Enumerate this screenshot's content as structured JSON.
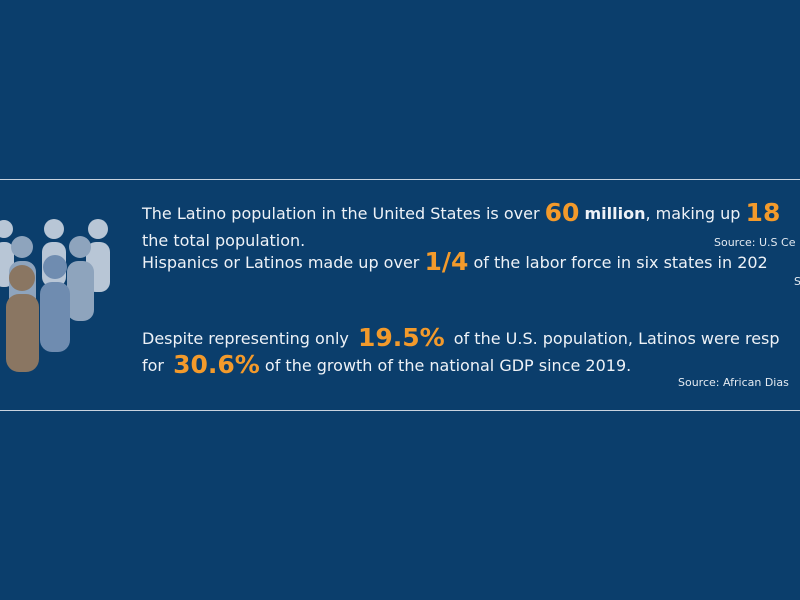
{
  "statements": [
    {
      "text_before": "The Latino population in the United States is over",
      "figure": "60",
      "unit": "million",
      "text_after": ", making up",
      "figure2": "18",
      "line2": "the total population.",
      "source": "Source:  U.S Ce"
    },
    {
      "text_before": "Hispanics or Latinos made up over",
      "figure": "1/4",
      "text_after": "of the labor force in six states in 202",
      "source": "S"
    },
    {
      "text_before": "Despite representing only",
      "figure": "19.5%",
      "text_after": "of the U.S. population, Latinos were resp",
      "line2_before": "for",
      "figure2": "30.6%",
      "line2_after": "of the growth of the national GDP since 2019.",
      "source": "Source: African Dias"
    }
  ]
}
